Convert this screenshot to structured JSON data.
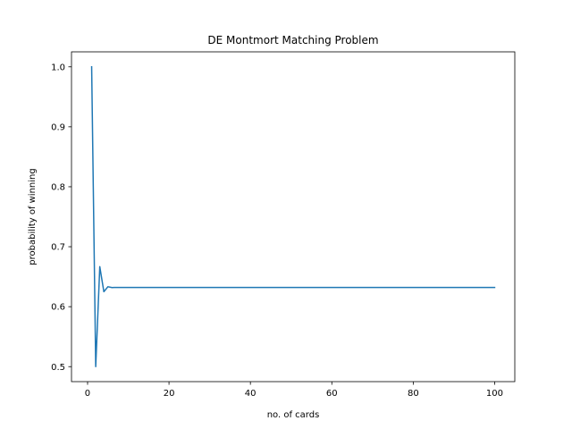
{
  "chart_data": {
    "type": "line",
    "title": "DE Montmort Matching Problem",
    "xlabel": "no. of cards",
    "ylabel": "probability of winning",
    "xlim": [
      -3.95,
      104.95
    ],
    "ylim": [
      0.475,
      1.025
    ],
    "xticks": [
      0,
      20,
      40,
      60,
      80,
      100
    ],
    "yticks": [
      0.5,
      0.6,
      0.7,
      0.8,
      0.9,
      1.0
    ],
    "ytick_decimals": 1,
    "grid": false,
    "legend": "none",
    "series": [
      {
        "color": "#1f77b4",
        "x": [
          1,
          2,
          3,
          4,
          5,
          6,
          7,
          8,
          10,
          20,
          30,
          40,
          50,
          60,
          70,
          80,
          90,
          100
        ],
        "y": [
          1.0,
          0.5,
          0.6667,
          0.625,
          0.6333,
          0.6319,
          0.6321,
          0.6321,
          0.6321,
          0.6321,
          0.6321,
          0.6321,
          0.6321,
          0.6321,
          0.6321,
          0.6321,
          0.6321,
          0.6321
        ]
      }
    ]
  }
}
